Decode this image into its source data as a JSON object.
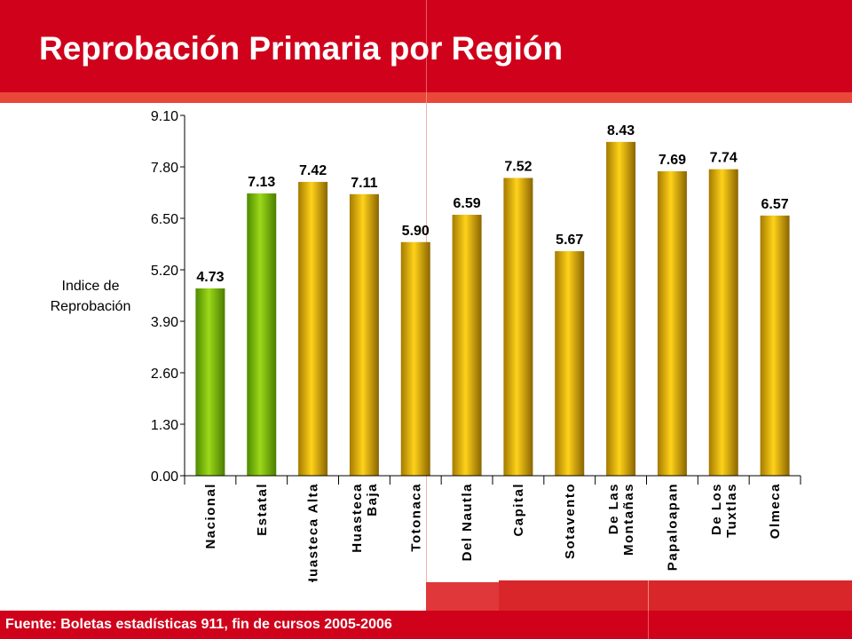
{
  "page": {
    "title": "Reprobación Primaria por Región",
    "source": "Fuente: Boletas estadísticas 911, fin de cursos 2005-2006"
  },
  "colors": {
    "header_red": "#d0021b",
    "strip_red": "#e8473a",
    "bar_green": "#7cb800",
    "bar_gold": "#e0b000"
  },
  "chart_data": {
    "type": "bar",
    "ylabel": [
      "Indice de",
      "Reprobación"
    ],
    "ylim": [
      0,
      9.1
    ],
    "yticks": [
      "0.00",
      "1.30",
      "2.60",
      "3.90",
      "5.20",
      "6.50",
      "7.80",
      "9.10"
    ],
    "grid": false,
    "categories": [
      [
        "Nacional"
      ],
      [
        "Estatal"
      ],
      [
        "Huasteca Alta"
      ],
      [
        "Huasteca",
        "Baja"
      ],
      [
        "Totonaca"
      ],
      [
        "Del Nautla"
      ],
      [
        "Capital"
      ],
      [
        "Sotavento"
      ],
      [
        "De Las",
        "Montañas"
      ],
      [
        "Papaloapan"
      ],
      [
        "De Los",
        "Tuxtlas"
      ],
      [
        "Olmeca"
      ]
    ],
    "values": [
      4.73,
      7.13,
      7.42,
      7.11,
      5.9,
      6.59,
      7.52,
      5.67,
      8.43,
      7.69,
      7.74,
      6.57
    ],
    "value_labels": [
      "4.73",
      "7.13",
      "7.42",
      "7.11",
      "5.90",
      "6.59",
      "7.52",
      "5.67",
      "8.43",
      "7.69",
      "7.74",
      "6.57"
    ],
    "bar_colors": [
      "green",
      "green",
      "gold",
      "gold",
      "gold",
      "gold",
      "gold",
      "gold",
      "gold",
      "gold",
      "gold",
      "gold"
    ]
  }
}
